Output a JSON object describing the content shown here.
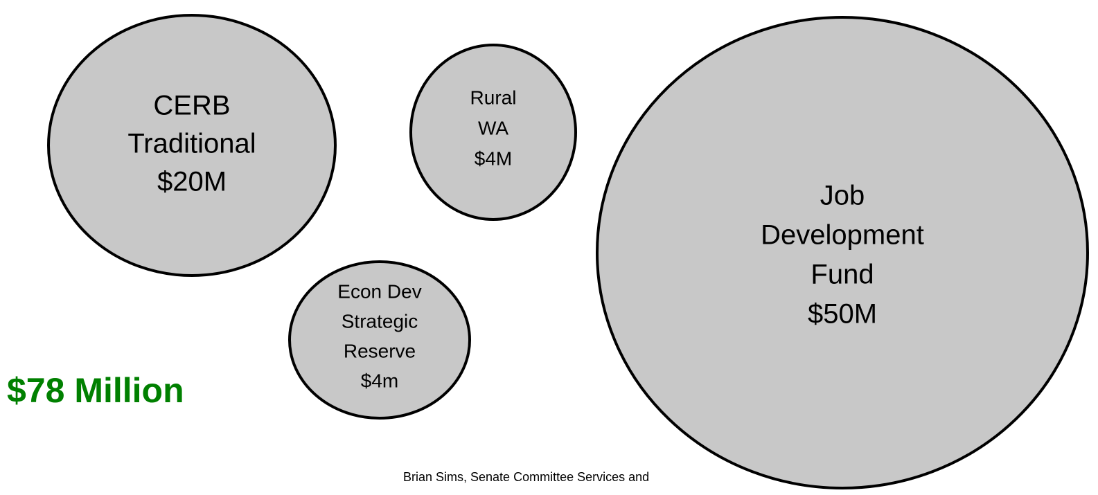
{
  "nodes": [
    {
      "lines": [
        "CERB",
        "Traditional",
        "$20M"
      ]
    },
    {
      "lines": [
        "Rural",
        "WA",
        "$4M"
      ]
    },
    {
      "lines": [
        "Econ Dev",
        "Strategic",
        "Reserve",
        "$4m"
      ]
    },
    {
      "lines": [
        "Job",
        "Development",
        "Fund",
        "$50M"
      ]
    }
  ],
  "total": "$78 Million",
  "footer": "Brian Sims, Senate Committee Services and"
}
